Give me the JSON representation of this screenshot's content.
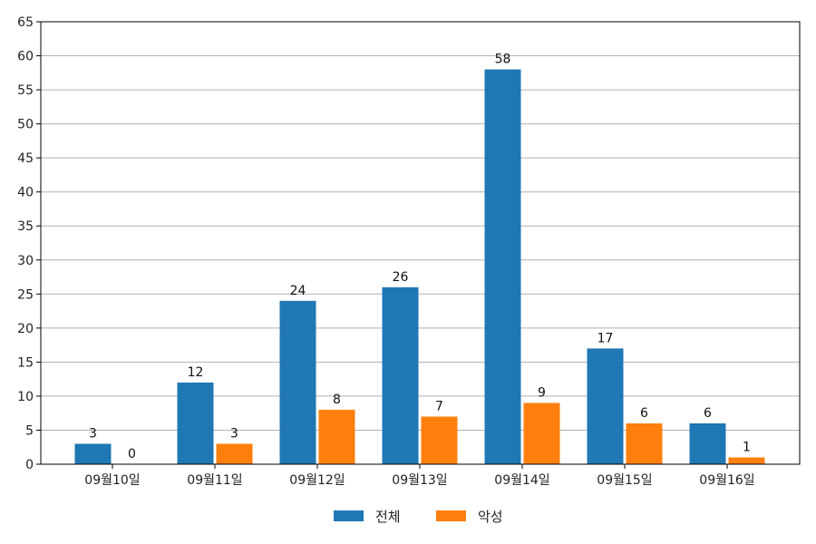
{
  "chart_data": {
    "type": "bar",
    "categories": [
      "09월10일",
      "09월11일",
      "09월12일",
      "09월13일",
      "09월14일",
      "09월15일",
      "09월16일"
    ],
    "series": [
      {
        "name": "전체",
        "values": [
          3,
          12,
          24,
          26,
          58,
          17,
          6
        ],
        "color": "#1f77b4"
      },
      {
        "name": "악성",
        "values": [
          0,
          3,
          8,
          7,
          9,
          6,
          1
        ],
        "color": "#ff7f0e"
      }
    ],
    "title": "",
    "xlabel": "",
    "ylabel": "",
    "ylim": [
      0,
      65
    ],
    "yticks": [
      0,
      5,
      10,
      15,
      20,
      25,
      30,
      35,
      40,
      45,
      50,
      55,
      60,
      65
    ],
    "grid": "horizontal",
    "legend": "bottom-center"
  }
}
